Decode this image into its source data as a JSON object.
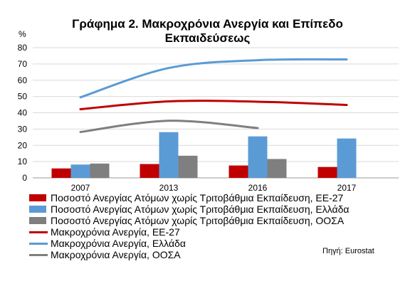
{
  "title_line1": "Γράφημα 2. Μακροχρόνια Ανεργία  και Επίπεδο",
  "title_line2": "Εκπαιδεύσεως",
  "source": "Πηγή: Eurostat",
  "chart_data": {
    "type": "bar",
    "title": "Γράφημα 2. Μακροχρόνια Ανεργία  και Επίπεδο Εκπαιδεύσεως",
    "ylabel": "%",
    "ylim": [
      0,
      80
    ],
    "yticks": [
      0,
      10,
      20,
      30,
      40,
      50,
      60,
      70,
      80
    ],
    "grid": true,
    "legend_position": "bottom",
    "categories": [
      "2007",
      "2013",
      "2016",
      "2017"
    ],
    "bar_series": [
      {
        "name": "Ποσοστό Ανεργίας Ατόμων χωρίς Τριτοβάθμια  Εκπαίδευση, ΕΕ-27",
        "color": "#c00000",
        "values": [
          5.8,
          8.5,
          7.6,
          6.7
        ]
      },
      {
        "name": "Ποσοστό Ανεργίας Ατόμων χωρίς Τριτοβάθμια  Εκπαίδευση, Ελλάδα",
        "color": "#5b9bd5",
        "values": [
          8.2,
          28.1,
          25.5,
          24.2
        ]
      },
      {
        "name": "Ποσοστό Ανεργίας Ατόμων χωρίς Τριτοβάθμια  Εκπαίδευση, ΟΟΣΑ",
        "color": "#7f7f7f",
        "values": [
          8.8,
          13.6,
          11.6,
          null
        ]
      }
    ],
    "line_series": [
      {
        "name": "Μακροχρόνια Ανεργία, ΕΕ-27",
        "color": "#c00000",
        "values": [
          42.2,
          47.0,
          46.8,
          44.8
        ]
      },
      {
        "name": "Μακροχρόνια Ανεργία, Ελλάδα",
        "color": "#5b9bd5",
        "values": [
          49.5,
          67.5,
          72.3,
          72.8
        ]
      },
      {
        "name": "Μακροχρόνια Ανεργία, ΟΟΣΑ",
        "color": "#7f7f7f",
        "values": [
          28.2,
          35.1,
          30.6,
          null
        ]
      }
    ]
  }
}
